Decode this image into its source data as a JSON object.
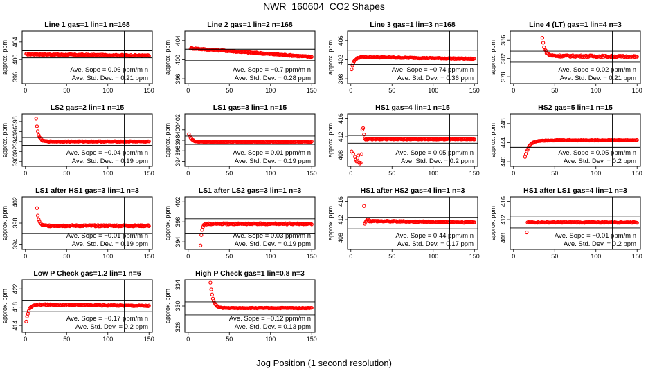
{
  "figure": {
    "title": "NWR  160604  CO2 Shapes",
    "xlabel": "Jog Position (1 second resolution)",
    "point_color": "#ff0000",
    "line_color": "#000000"
  },
  "chart_data": [
    {
      "type": "scatter",
      "title": "Line 1 gas=1 lin=1 n=168",
      "ylabel": "approx. ppm",
      "xlim": [
        -4,
        154
      ],
      "ylim": [
        394.5,
        406.5
      ],
      "xticks": [
        0,
        50,
        100,
        150
      ],
      "yticks": [
        396,
        400,
        404
      ],
      "hlines": [
        400.4,
        402.0
      ],
      "vline": 120,
      "slope_text": "Ave. Sope =  0.06  ppm/m n",
      "sd_text": "Ave. Std. Dev. =  0.21  ppm",
      "series": [
        {
          "shape": "flat",
          "x0": 1,
          "x1": 150,
          "y0": 401.2,
          "y1": 400.9,
          "noise": 0.12
        }
      ]
    },
    {
      "type": "scatter",
      "title": "Line 2 gas=1 lin=2 n=168",
      "ylabel": "approx. ppm",
      "xlim": [
        -4,
        154
      ],
      "ylim": [
        395,
        406
      ],
      "xticks": [
        0,
        50,
        100,
        150
      ],
      "yticks": [
        396,
        400,
        404
      ],
      "hlines": [
        399.8,
        402.2
      ],
      "vline": 120,
      "slope_text": "Ave. Sope =  −0.7  ppm/m n",
      "sd_text": "Ave. Std. Dev. =  0.28  ppm",
      "series": [
        {
          "shape": "flat",
          "x0": 3,
          "x1": 150,
          "y0": 402.4,
          "y1": 400.6,
          "noise": 0.12
        }
      ]
    },
    {
      "type": "scatter",
      "title": "Line 3 gas=1 lin=3 n=168",
      "ylabel": "approx. ppm",
      "xlim": [
        -4,
        154
      ],
      "ylim": [
        397,
        408
      ],
      "xticks": [
        0,
        50,
        100,
        150
      ],
      "yticks": [
        398,
        402,
        406
      ],
      "hlines": [
        401.0,
        404.0
      ],
      "vline": 120,
      "slope_text": "Ave. Sope =  −0.74  ppm/m n",
      "sd_text": "Ave. Std. Dev. =  0.36  ppm",
      "series": [
        {
          "shape": "rise",
          "x0": 1,
          "x1": 150,
          "start": 400.0,
          "y0": 402.6,
          "y1": 402.2,
          "tau": 3,
          "noise": 0.1
        }
      ]
    },
    {
      "type": "scatter",
      "title": "Line 4 (LT) gas=1 lin=4 n=3",
      "ylabel": "approx. ppm",
      "xlim": [
        -4,
        154
      ],
      "ylim": [
        376.5,
        388
      ],
      "xticks": [
        0,
        50,
        100,
        150
      ],
      "yticks": [
        378,
        382,
        386
      ],
      "hlines": [
        381.2,
        383.6
      ],
      "vline": 120,
      "slope_text": "Ave. Sope =  0.02  ppm/m n",
      "sd_text": "Ave. Std. Dev. =  0.21  ppm",
      "series": [
        {
          "shape": "spike",
          "x0": 35,
          "x1": 150,
          "start": 386.5,
          "y0": 382.6,
          "y1": 382.4,
          "tau": 3,
          "noise": 0.18
        }
      ]
    },
    {
      "type": "scatter",
      "title": "LS2 gas=2 lin=1 n=15",
      "ylabel": "approx. ppm",
      "xlim": [
        -4,
        154
      ],
      "ylim": [
        389,
        399.5
      ],
      "xticks": [
        0,
        50,
        100,
        150
      ],
      "yticks": [
        390,
        392,
        394,
        396,
        398
      ],
      "hlines": [
        393.2,
        394.8
      ],
      "vline": 120,
      "slope_text": "Ave. Sope =  −0.04  ppm/m n",
      "sd_text": "Ave. Std. Dev. =  0.19  ppm",
      "series": [
        {
          "shape": "spike",
          "x0": 13,
          "x1": 150,
          "start": 398.5,
          "y0": 394.0,
          "y1": 394.0,
          "tau": 2.5,
          "noise": 0.08
        }
      ]
    },
    {
      "type": "scatter",
      "title": "LS1 gas=3 lin=1 n=15",
      "ylabel": "approx. ppm",
      "xlim": [
        -4,
        154
      ],
      "ylim": [
        393,
        403
      ],
      "xticks": [
        0,
        50,
        100,
        150
      ],
      "yticks": [
        394,
        396,
        398,
        400,
        402
      ],
      "hlines": [
        397.2,
        398.8
      ],
      "vline": 120,
      "slope_text": "Ave. Sope =  0.01  ppm/m n",
      "sd_text": "Ave. Std. Dev. =  0.19  ppm",
      "series": [
        {
          "shape": "spike",
          "x0": 1,
          "x1": 150,
          "start": 399.2,
          "y0": 397.7,
          "y1": 397.7,
          "tau": 3,
          "noise": 0.08
        }
      ]
    },
    {
      "type": "scatter",
      "title": "HS1 gas=4 lin=1 n=15",
      "ylabel": "approx. ppm",
      "xlim": [
        -4,
        154
      ],
      "ylim": [
        405.5,
        417
      ],
      "xticks": [
        0,
        50,
        100,
        150
      ],
      "yticks": [
        408,
        412,
        416
      ],
      "hlines": [
        410.6,
        412.3
      ],
      "vline": 120,
      "slope_text": "Ave. Sope =  0.05  ppm/m n",
      "sd_text": "Ave. Std. Dev. =  0.2  ppm",
      "series": [
        {
          "shape": "points",
          "pts": [
            [
              1,
              408.8
            ],
            [
              3,
              408.3
            ],
            [
              5,
              407.6
            ],
            [
              6,
              407.0
            ],
            [
              7,
              406.6
            ],
            [
              8,
              407.3
            ],
            [
              9,
              407.9
            ],
            [
              10,
              406.4
            ],
            [
              11,
              406.1
            ],
            [
              12,
              406.3
            ],
            [
              13,
              408.2
            ],
            [
              14,
              413.6
            ],
            [
              15,
              413.9
            ],
            [
              16,
              412.5
            ],
            [
              17,
              411.6
            ],
            [
              18,
              411.4
            ]
          ]
        },
        {
          "shape": "flat",
          "x0": 18,
          "x1": 150,
          "y0": 411.5,
          "y1": 411.5,
          "noise": 0.1
        }
      ]
    },
    {
      "type": "scatter",
      "title": "HS2 gas=5 lin=1 n=15",
      "ylabel": "approx. ppm",
      "xlim": [
        -4,
        154
      ],
      "ylim": [
        439,
        450
      ],
      "xticks": [
        0,
        50,
        100,
        150
      ],
      "yticks": [
        440,
        444,
        448
      ],
      "hlines": [
        443.0,
        445.6
      ],
      "vline": 120,
      "slope_text": "Ave. Sope =  0.05  ppm/m n",
      "sd_text": "Ave. Std. Dev. =  0.2  ppm",
      "series": [
        {
          "shape": "rise",
          "x0": 14,
          "x1": 150,
          "start": 441.0,
          "y0": 444.5,
          "y1": 444.5,
          "tau": 5,
          "noise": 0.08
        }
      ]
    },
    {
      "type": "scatter",
      "title": "LS1 after HS1 gas=3 lin=1 n=3",
      "ylabel": "approx. ppm",
      "xlim": [
        -4,
        154
      ],
      "ylim": [
        393,
        403
      ],
      "xticks": [
        0,
        50,
        100,
        150
      ],
      "yticks": [
        394,
        398,
        402
      ],
      "hlines": [
        396.0,
        398.6
      ],
      "vline": 120,
      "slope_text": "Ave. Sope =  −0.01  ppm/m n",
      "sd_text": "Ave. Std. Dev. =  0.19  ppm",
      "series": [
        {
          "shape": "spike",
          "x0": 14,
          "x1": 150,
          "start": 400.8,
          "y0": 397.5,
          "y1": 397.5,
          "tau": 2,
          "noise": 0.12
        }
      ]
    },
    {
      "type": "scatter",
      "title": "LS1 after LS2 gas=3 lin=1 n=3",
      "ylabel": "approx. ppm",
      "xlim": [
        -4,
        154
      ],
      "ylim": [
        392.5,
        403
      ],
      "xticks": [
        0,
        50,
        100,
        150
      ],
      "yticks": [
        394,
        398,
        402
      ],
      "hlines": [
        395.6,
        398.6
      ],
      "vline": 120,
      "slope_text": "Ave. Sope =  0.03  ppm/m n",
      "sd_text": "Ave. Std. Dev. =  0.19  ppm",
      "series": [
        {
          "shape": "rise",
          "x0": 15,
          "x1": 150,
          "start": 393.4,
          "y0": 397.6,
          "y1": 397.6,
          "tau": 1.5,
          "noise": 0.12
        }
      ]
    },
    {
      "type": "scatter",
      "title": "HS1 after HS2 gas=4 lin=1 n=3",
      "ylabel": "approx. ppm",
      "xlim": [
        -4,
        154
      ],
      "ylim": [
        405.5,
        417
      ],
      "xticks": [
        0,
        50,
        100,
        150
      ],
      "yticks": [
        408,
        412,
        416
      ],
      "hlines": [
        410.0,
        412.5
      ],
      "vline": 120,
      "slope_text": "Ave. Sope =  0.44  ppm/m n",
      "sd_text": "Ave. Std. Dev. =  0.17  ppm",
      "series": [
        {
          "shape": "points",
          "pts": [
            [
              16,
              415.0
            ],
            [
              17,
              411.1
            ],
            [
              18,
              411.5
            ],
            [
              19,
              411.8
            ],
            [
              20,
              412.0
            ],
            [
              21,
              412.1
            ]
          ]
        },
        {
          "shape": "flat",
          "x0": 22,
          "x1": 150,
          "y0": 411.7,
          "y1": 411.4,
          "noise": 0.12
        }
      ]
    },
    {
      "type": "scatter",
      "title": "HS1 after LS1 gas=4 lin=1 n=3",
      "ylabel": "approx. ppm",
      "xlim": [
        -4,
        154
      ],
      "ylim": [
        405.5,
        417
      ],
      "xticks": [
        0,
        50,
        100,
        150
      ],
      "yticks": [
        408,
        412,
        416
      ],
      "hlines": [
        410.2,
        412.8
      ],
      "vline": 120,
      "slope_text": "Ave. Sope =  −0.01  ppm/m n",
      "sd_text": "Ave. Std. Dev. =  0.2  ppm",
      "series": [
        {
          "shape": "points",
          "pts": [
            [
              16,
              409.2
            ]
          ]
        },
        {
          "shape": "flat",
          "x0": 17,
          "x1": 150,
          "y0": 411.4,
          "y1": 411.4,
          "noise": 0.1
        }
      ]
    },
    {
      "type": "scatter",
      "title": "Low P Check gas=1.2 lin=1 n=6",
      "ylabel": "approx. ppm",
      "xlim": [
        -4,
        154
      ],
      "ylim": [
        412.5,
        424
      ],
      "xticks": [
        0,
        50,
        100,
        150
      ],
      "yticks": [
        414,
        418,
        422
      ],
      "hlines": [
        417.0,
        419.4
      ],
      "vline": 120,
      "slope_text": "Ave. Sope =  −0.17  ppm/m n",
      "sd_text": "Ave. Std. Dev. =  0.2  ppm",
      "series": [
        {
          "shape": "rise",
          "x0": 1,
          "x1": 150,
          "start": 414.8,
          "y0": 418.6,
          "y1": 418.3,
          "tau": 3,
          "noise": 0.12
        }
      ]
    },
    {
      "type": "scatter",
      "title": "High P Check gas=1 lin=0.8 n=3",
      "ylabel": "approx. ppm",
      "xlim": [
        -4,
        154
      ],
      "ylim": [
        325,
        335
      ],
      "xticks": [
        0,
        50,
        100,
        150
      ],
      "yticks": [
        326,
        330,
        334
      ],
      "hlines": [
        328.3,
        330.8
      ],
      "vline": 120,
      "slope_text": "Ave. Sope =  −0.12  ppm/m n",
      "sd_text": "Ave. Std. Dev. =  0.13  ppm",
      "series": [
        {
          "shape": "spike",
          "x0": 27,
          "x1": 150,
          "start": 334.4,
          "y0": 329.6,
          "y1": 329.6,
          "tau": 3.2,
          "noise": 0.07
        }
      ]
    }
  ]
}
